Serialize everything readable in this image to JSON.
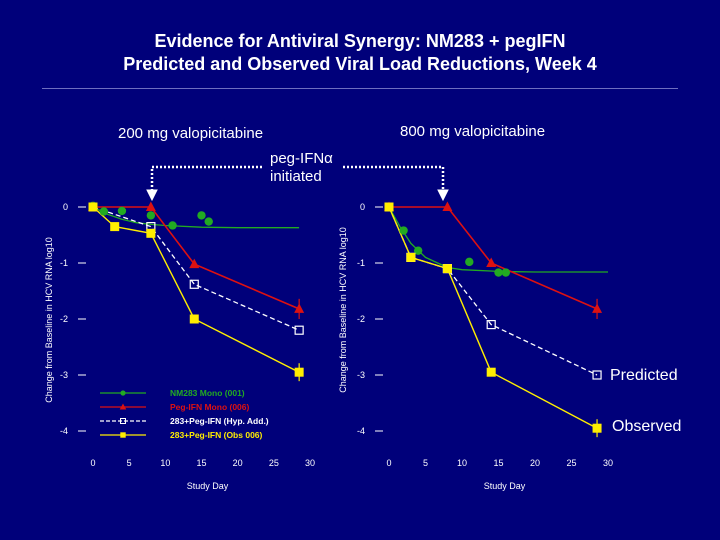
{
  "slide": {
    "title_line1": "Evidence for Antiviral Synergy: NM283 + pegIFN",
    "title_line2": "Predicted and Observed Viral Load Reductions, Week 4",
    "panel_left_label": "200 mg valopicitabine",
    "panel_right_label": "800 mg valopicitabine",
    "peg_label_line1": "peg-IFNα",
    "peg_label_line2": "initiated",
    "predicted_label": "Predicted",
    "observed_label": "Observed"
  },
  "colors": {
    "background": "#00007a",
    "nm283": "#22aa22",
    "pegifn": "#dd1111",
    "hyp_add": "#ffffff",
    "obs": "#ffee00"
  },
  "chart_data": [
    {
      "type": "line",
      "panel": "200 mg valopicitabine",
      "xlabel": "Study Day",
      "ylabel": "Change from Baseline in HCV RNA log10",
      "xlim": [
        0,
        30
      ],
      "ylim": [
        -4,
        0
      ],
      "xticks": [
        "0",
        "5",
        "10",
        "15",
        "20",
        "25",
        "30"
      ],
      "yticks": [
        "0",
        "-1",
        "-2",
        "-3",
        "-4"
      ],
      "legend": [
        "NM283 Mono (001)",
        "Peg-IFN Mono (006)",
        "283+Peg-IFN (Hyp. Add.)",
        "283+Peg-IFN (Obs 006)"
      ],
      "series": [
        {
          "name": "NM283 Mono (001)",
          "style": "fit",
          "x": [
            0,
            2,
            4,
            6,
            8,
            10,
            15,
            20,
            28.5
          ],
          "y": [
            0,
            -0.13,
            -0.22,
            -0.28,
            -0.31,
            -0.33,
            -0.36,
            -0.37,
            -0.37
          ]
        },
        {
          "name": "NM283 Mono (001) observed",
          "style": "points",
          "x": [
            0,
            1.5,
            4,
            8,
            11,
            15,
            16
          ],
          "y": [
            0.02,
            -0.08,
            -0.07,
            -0.15,
            -0.33,
            -0.15,
            -0.26
          ]
        },
        {
          "name": "Peg-IFN Mono (006)",
          "x": [
            0,
            8,
            14,
            28.5
          ],
          "y": [
            0,
            0,
            -1.02,
            -1.82
          ]
        },
        {
          "name": "283+Peg-IFN (Hyp. Add.)",
          "x": [
            0,
            8,
            14,
            28.5
          ],
          "y": [
            0,
            -0.35,
            -1.38,
            -2.2
          ]
        },
        {
          "name": "283+Peg-IFN (Obs 006)",
          "x": [
            0,
            3,
            8,
            14,
            28.5
          ],
          "y": [
            0,
            -0.35,
            -0.47,
            -2.0,
            -2.95
          ]
        }
      ]
    },
    {
      "type": "line",
      "panel": "800 mg valopicitabine",
      "xlabel": "Study Day",
      "ylabel": "Change from Baseline in HCV RNA log10",
      "xlim": [
        0,
        30
      ],
      "ylim": [
        -4,
        0
      ],
      "xticks": [
        "0",
        "5",
        "10",
        "15",
        "20",
        "25",
        "30"
      ],
      "yticks": [
        "0",
        "-1",
        "-2",
        "-3",
        "-4"
      ],
      "series": [
        {
          "name": "NM283 Mono",
          "style": "fit",
          "x": [
            0,
            1.5,
            3,
            5,
            8,
            10,
            15,
            20,
            30
          ],
          "y": [
            0,
            -0.35,
            -0.65,
            -0.9,
            -1.08,
            -1.12,
            -1.15,
            -1.16,
            -1.16
          ]
        },
        {
          "name": "NM283 Mono observed",
          "style": "points",
          "x": [
            0,
            2,
            4,
            8,
            11,
            15,
            16
          ],
          "y": [
            0,
            -0.42,
            -0.78,
            -1.1,
            -0.98,
            -1.17,
            -1.17
          ]
        },
        {
          "name": "Peg-IFN Mono",
          "x": [
            0,
            8,
            14,
            28.5
          ],
          "y": [
            0,
            0,
            -1.0,
            -1.82
          ]
        },
        {
          "name": "283+Peg-IFN (Hyp. Add.)",
          "x": [
            0,
            3,
            8,
            14,
            28.5
          ],
          "y": [
            0,
            -0.9,
            -1.1,
            -2.1,
            -3.0
          ]
        },
        {
          "name": "283+Peg-IFN (Obs)",
          "x": [
            0,
            3,
            8,
            14,
            28.5
          ],
          "y": [
            0,
            -0.9,
            -1.1,
            -2.95,
            -3.95
          ]
        }
      ]
    }
  ]
}
